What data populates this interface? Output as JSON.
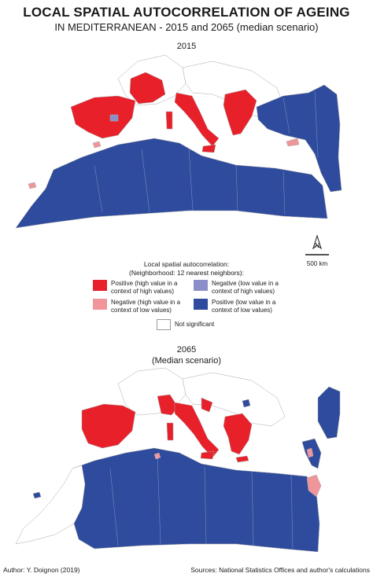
{
  "title": {
    "line1": "LOCAL SPATIAL AUTOCORRELATION OF AGEING",
    "line2": "IN MEDITERRANEAN - 2015 and 2065 (median scenario)"
  },
  "maps": [
    {
      "label": "2015",
      "sublabel": ""
    },
    {
      "label": "2065",
      "sublabel": "(Median scenario)"
    }
  ],
  "scale": {
    "north_label": "N",
    "distance_label": "500 km"
  },
  "legend": {
    "title_line1": "Local spatial autocorrelation:",
    "title_line2": "(Neighborhood: 12 nearest neighbors):",
    "items": [
      {
        "key": "pos_high",
        "line1": "Positive (high value in a",
        "line2": "context of high values)",
        "color": "#e8202a"
      },
      {
        "key": "neg_low",
        "line1": "Negative (low value in a",
        "line2": "context of high values)",
        "color": "#8b8fc9"
      },
      {
        "key": "neg_high",
        "line1": "Negative (high value in a",
        "line2": "context of low values)",
        "color": "#f0959a"
      },
      {
        "key": "pos_low",
        "line1": "Positive (low value in a",
        "line2": "context of low values)",
        "color": "#2e4b9d"
      },
      {
        "key": "not_sig",
        "line1": "Not significant",
        "line2": "",
        "color": "#ffffff"
      }
    ]
  },
  "footer": {
    "author": "Author: Y. Doignon (2019)",
    "sources": "Sources: National Statistics Offices and author's calculations"
  }
}
